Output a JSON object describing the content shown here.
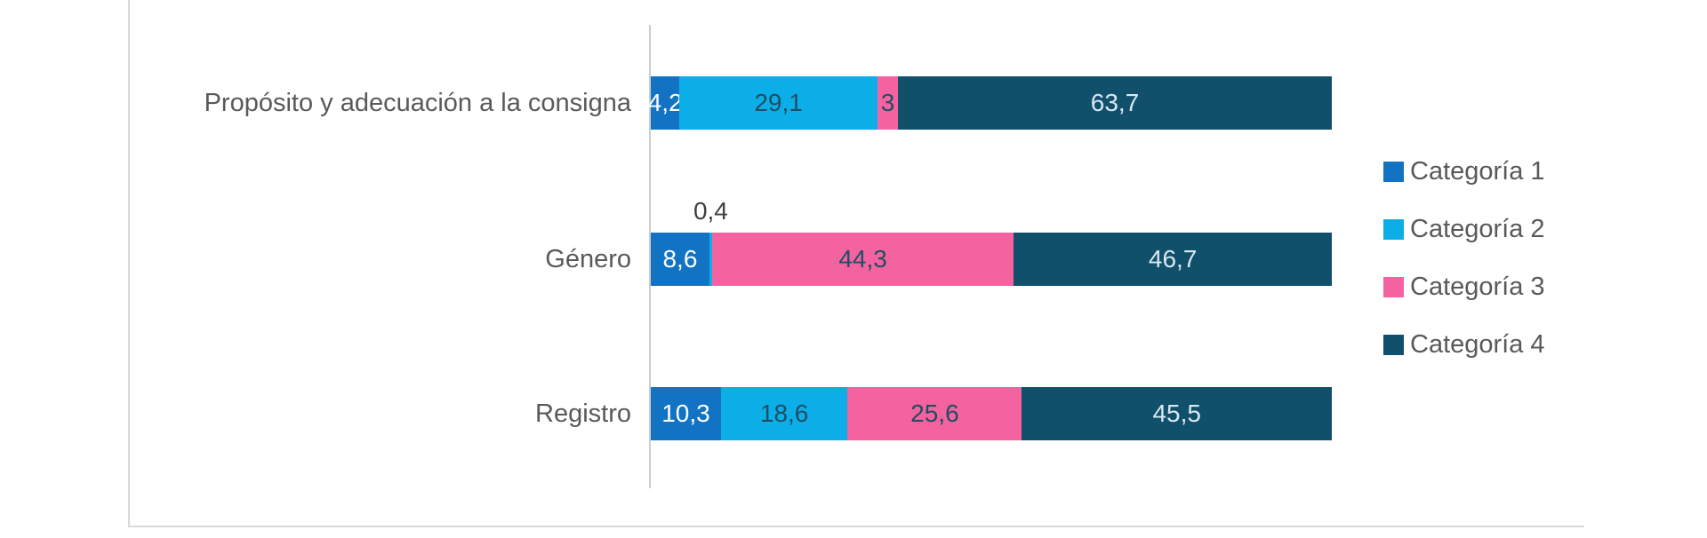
{
  "chart_data": {
    "type": "bar",
    "orientation": "horizontal",
    "stacked": true,
    "stack_total": 100,
    "title": "",
    "xlabel": "",
    "ylabel": "",
    "xlim": [
      0,
      100
    ],
    "grid": false,
    "legend_position": "right",
    "categories": [
      "Propósito y adecuación a la consigna",
      "Género",
      "Registro"
    ],
    "series": [
      {
        "name": "Categoría 1",
        "color": "#1273C4",
        "label_color": "#FFFFFF",
        "values": [
          4.2,
          8.6,
          10.3
        ],
        "labels": [
          "4,2",
          "8,6",
          "10,3"
        ]
      },
      {
        "name": "Categoría 2",
        "color": "#0CAEE8",
        "label_color": "#1F4E63",
        "values": [
          29.1,
          0.4,
          18.6
        ],
        "labels": [
          "29,1",
          "0,4",
          "18,6"
        ]
      },
      {
        "name": "Categoría 3",
        "color": "#F4629F",
        "label_color": "#1F4E63",
        "values": [
          3,
          44.3,
          25.6
        ],
        "labels": [
          "3",
          "44,3",
          "25,6"
        ]
      },
      {
        "name": "Categoría 4",
        "color": "#10506B",
        "label_color": "#D9E8F2",
        "values": [
          63.7,
          46.7,
          45.5
        ],
        "labels": [
          "63,7",
          "46,7",
          "45,5"
        ]
      }
    ],
    "outside_label_color": "#404040",
    "axis_line_color": "#C9CDD2",
    "frame_color": "#D9D9D9",
    "category_label_color": "#595959",
    "legend_text_color": "#595959",
    "background": "#FFFFFF"
  }
}
